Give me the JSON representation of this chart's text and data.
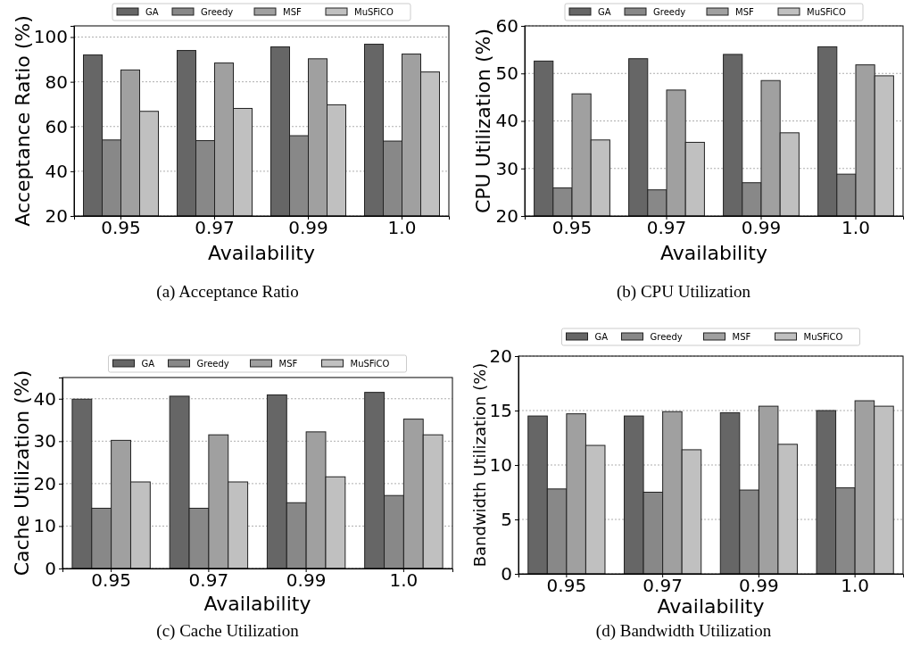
{
  "chart_data": [
    {
      "type": "bar",
      "xlabel": "Availability",
      "ylabel": "Acceptance Ratio (%)",
      "categories": [
        "0.95",
        "0.97",
        "0.99",
        "1.0"
      ],
      "ylim": [
        20,
        105
      ],
      "yticks": [
        20,
        40,
        60,
        80,
        100
      ],
      "grid": "y",
      "legend": "top",
      "annotations": [
        "(a)  Acceptance Ratio"
      ],
      "series": [
        {
          "name": "GA",
          "color": "#666666",
          "values": [
            92,
            94,
            95.6,
            96.8
          ]
        },
        {
          "name": "Greedy",
          "color": "#888888",
          "values": [
            54,
            53.7,
            55.9,
            53.5
          ]
        },
        {
          "name": "MSF",
          "color": "#a0a0a0",
          "values": [
            85.3,
            88.4,
            90.3,
            92.4
          ]
        },
        {
          "name": "MuSFiCO",
          "color": "#c0c0c0",
          "values": [
            66.8,
            68.1,
            69.7,
            84.4
          ]
        }
      ]
    },
    {
      "type": "bar",
      "xlabel": "Availability",
      "ylabel": "CPU Utilization (%)",
      "categories": [
        "0.95",
        "0.97",
        "0.99",
        "1.0"
      ],
      "ylim": [
        20,
        60
      ],
      "yticks": [
        20,
        30,
        40,
        50,
        60
      ],
      "grid": "y",
      "legend": "top",
      "annotations": [
        "(b)  CPU Utilization"
      ],
      "series": [
        {
          "name": "GA",
          "color": "#666666",
          "values": [
            52.6,
            53.1,
            54.0,
            55.6
          ]
        },
        {
          "name": "Greedy",
          "color": "#888888",
          "values": [
            25.9,
            25.5,
            27.0,
            28.8
          ]
        },
        {
          "name": "MSF",
          "color": "#a0a0a0",
          "values": [
            45.7,
            46.5,
            48.5,
            51.8
          ]
        },
        {
          "name": "MuSFiCO",
          "color": "#c0c0c0",
          "values": [
            36.0,
            35.5,
            37.5,
            49.5
          ]
        }
      ]
    },
    {
      "type": "bar",
      "xlabel": "Availability",
      "ylabel": "Cache Utilization (%)",
      "categories": [
        "0.95",
        "0.97",
        "0.99",
        "1.0"
      ],
      "ylim": [
        0,
        45
      ],
      "yticks": [
        0,
        10,
        20,
        30,
        40
      ],
      "grid": "y",
      "legend": "top",
      "annotations": [
        "(c)  Cache Utilization"
      ],
      "series": [
        {
          "name": "GA",
          "color": "#666666",
          "values": [
            39.9,
            40.6,
            40.9,
            41.5
          ]
        },
        {
          "name": "Greedy",
          "color": "#888888",
          "values": [
            14.2,
            14.2,
            15.5,
            17.2
          ]
        },
        {
          "name": "MSF",
          "color": "#a0a0a0",
          "values": [
            30.2,
            31.5,
            32.2,
            35.2
          ]
        },
        {
          "name": "MuSFiCO",
          "color": "#c0c0c0",
          "values": [
            20.4,
            20.4,
            21.6,
            31.5
          ]
        }
      ]
    },
    {
      "type": "bar",
      "xlabel": "Availability",
      "ylabel": "Bandwidth Utilization (%)",
      "categories": [
        "0.95",
        "0.97",
        "0.99",
        "1.0"
      ],
      "ylim": [
        0,
        20
      ],
      "yticks": [
        0,
        5,
        10,
        15,
        20
      ],
      "grid": "y",
      "legend": "top",
      "annotations": [
        "(d)  Bandwidth Utilization"
      ],
      "series": [
        {
          "name": "GA",
          "color": "#666666",
          "values": [
            14.5,
            14.5,
            14.8,
            15.0
          ]
        },
        {
          "name": "Greedy",
          "color": "#888888",
          "values": [
            7.8,
            7.5,
            7.7,
            7.9
          ]
        },
        {
          "name": "MSF",
          "color": "#a0a0a0",
          "values": [
            14.7,
            14.9,
            15.4,
            15.9
          ]
        },
        {
          "name": "MuSFiCO",
          "color": "#c0c0c0",
          "values": [
            11.8,
            11.4,
            11.9,
            15.4
          ]
        }
      ]
    }
  ]
}
